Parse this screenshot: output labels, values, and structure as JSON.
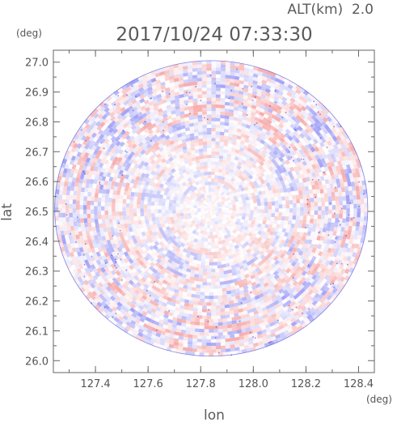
{
  "chart_data": {
    "type": "heatmap",
    "subtype": "radar-ppi",
    "altitude_label": "ALT(km)  2.0",
    "timestamp": "2017/10/24 07:33:30",
    "xlabel": "lon",
    "ylabel": "lat",
    "x_unit": "(deg)",
    "y_unit": "(deg)",
    "xlim": [
      127.24,
      128.46
    ],
    "ylim": [
      25.96,
      27.04
    ],
    "x_ticks": [
      127.4,
      127.6,
      127.8,
      128.0,
      128.2,
      128.4
    ],
    "x_tick_labels": [
      "127.4",
      "127.6",
      "127.8",
      "128.0",
      "128.2",
      "128.4"
    ],
    "y_ticks": [
      26.0,
      26.1,
      26.2,
      26.3,
      26.4,
      26.5,
      26.6,
      26.7,
      26.8,
      26.9,
      27.0
    ],
    "y_tick_labels": [
      "26.0",
      "26.1",
      "26.2",
      "26.3",
      "26.4",
      "26.5",
      "26.6",
      "26.7",
      "26.8",
      "26.9",
      "27.0"
    ],
    "radar_center": {
      "lon": 127.84,
      "lat": 26.51
    },
    "radar_range_deg": {
      "lon": 0.595,
      "lat": 0.495
    },
    "colormap": {
      "negative": "#8f8ff5",
      "neutral": "#ffffff",
      "positive": "#f59a9a",
      "edge": "#3a3ad0"
    },
    "grid": false
  }
}
